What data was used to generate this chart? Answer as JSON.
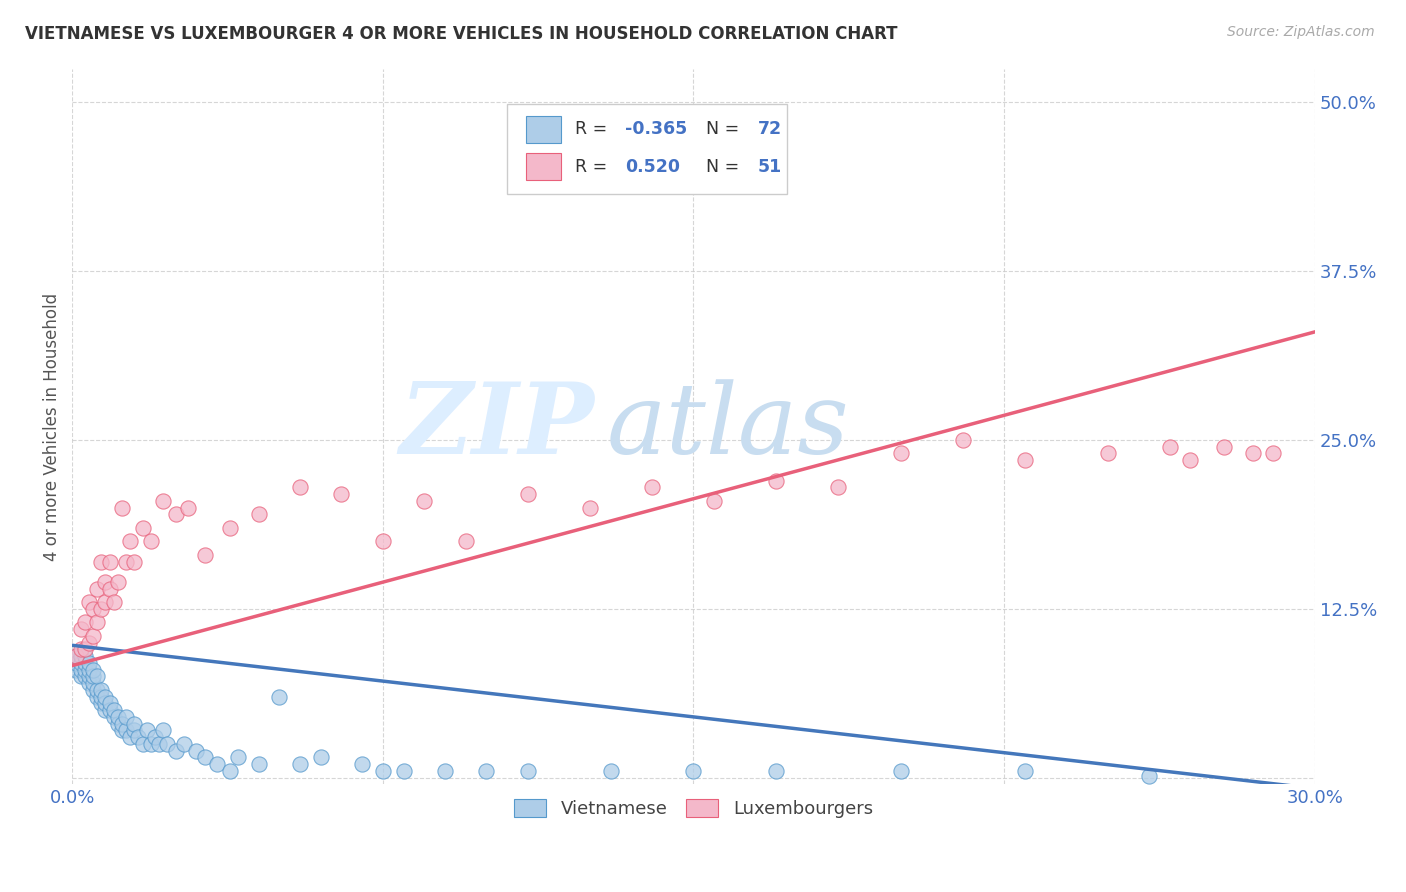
{
  "title": "VIETNAMESE VS LUXEMBOURGER 4 OR MORE VEHICLES IN HOUSEHOLD CORRELATION CHART",
  "source": "Source: ZipAtlas.com",
  "ylabel": "4 or more Vehicles in Household",
  "xlim": [
    0.0,
    0.3
  ],
  "ylim": [
    -0.005,
    0.525
  ],
  "yticks": [
    0.0,
    0.125,
    0.25,
    0.375,
    0.5
  ],
  "ytick_labels": [
    "",
    "12.5%",
    "25.0%",
    "37.5%",
    "50.0%"
  ],
  "xticks": [
    0.0,
    0.075,
    0.15,
    0.225,
    0.3
  ],
  "xtick_labels": [
    "0.0%",
    "",
    "",
    "",
    "30.0%"
  ],
  "color_vietnamese": "#aecde8",
  "color_luxembourger": "#f4b8ca",
  "color_edge_vietnamese": "#5599cc",
  "color_edge_luxembourger": "#e8607a",
  "color_line_vietnamese": "#4477bb",
  "color_line_luxembourger": "#e8607a",
  "color_title": "#333333",
  "color_axis_labels": "#4472c4",
  "color_r_value": "#4472c4",
  "background_color": "#ffffff",
  "watermark_zip": "ZIP",
  "watermark_atlas": "atlas",
  "watermark_color_zip": "#ddeeff",
  "watermark_color_atlas": "#c8ddf0",
  "viet_line_x": [
    0.0,
    0.3
  ],
  "viet_line_y": [
    0.098,
    -0.008
  ],
  "lux_line_x": [
    0.0,
    0.3
  ],
  "lux_line_y": [
    0.083,
    0.33
  ],
  "vietnamese_x": [
    0.001,
    0.001,
    0.001,
    0.002,
    0.002,
    0.002,
    0.002,
    0.003,
    0.003,
    0.003,
    0.003,
    0.004,
    0.004,
    0.004,
    0.004,
    0.005,
    0.005,
    0.005,
    0.005,
    0.006,
    0.006,
    0.006,
    0.007,
    0.007,
    0.007,
    0.008,
    0.008,
    0.008,
    0.009,
    0.009,
    0.01,
    0.01,
    0.011,
    0.011,
    0.012,
    0.012,
    0.013,
    0.013,
    0.014,
    0.015,
    0.015,
    0.016,
    0.017,
    0.018,
    0.019,
    0.02,
    0.021,
    0.022,
    0.023,
    0.025,
    0.027,
    0.03,
    0.032,
    0.035,
    0.038,
    0.04,
    0.045,
    0.05,
    0.055,
    0.06,
    0.07,
    0.075,
    0.08,
    0.09,
    0.1,
    0.11,
    0.13,
    0.15,
    0.17,
    0.2,
    0.23,
    0.26
  ],
  "vietnamese_y": [
    0.08,
    0.085,
    0.09,
    0.075,
    0.08,
    0.085,
    0.09,
    0.075,
    0.08,
    0.085,
    0.09,
    0.07,
    0.075,
    0.08,
    0.085,
    0.065,
    0.07,
    0.075,
    0.08,
    0.06,
    0.065,
    0.075,
    0.055,
    0.06,
    0.065,
    0.05,
    0.055,
    0.06,
    0.05,
    0.055,
    0.045,
    0.05,
    0.04,
    0.045,
    0.035,
    0.04,
    0.035,
    0.045,
    0.03,
    0.035,
    0.04,
    0.03,
    0.025,
    0.035,
    0.025,
    0.03,
    0.025,
    0.035,
    0.025,
    0.02,
    0.025,
    0.02,
    0.015,
    0.01,
    0.005,
    0.015,
    0.01,
    0.06,
    0.01,
    0.015,
    0.01,
    0.005,
    0.005,
    0.005,
    0.005,
    0.005,
    0.005,
    0.005,
    0.005,
    0.005,
    0.005,
    0.001
  ],
  "luxembourger_x": [
    0.001,
    0.002,
    0.002,
    0.003,
    0.003,
    0.004,
    0.004,
    0.005,
    0.005,
    0.006,
    0.006,
    0.007,
    0.007,
    0.008,
    0.008,
    0.009,
    0.009,
    0.01,
    0.011,
    0.012,
    0.013,
    0.014,
    0.015,
    0.017,
    0.019,
    0.022,
    0.025,
    0.028,
    0.032,
    0.038,
    0.045,
    0.055,
    0.065,
    0.075,
    0.085,
    0.095,
    0.11,
    0.125,
    0.14,
    0.155,
    0.17,
    0.185,
    0.2,
    0.215,
    0.23,
    0.25,
    0.265,
    0.27,
    0.278,
    0.285,
    0.29
  ],
  "luxembourger_y": [
    0.09,
    0.095,
    0.11,
    0.095,
    0.115,
    0.1,
    0.13,
    0.105,
    0.125,
    0.115,
    0.14,
    0.125,
    0.16,
    0.13,
    0.145,
    0.14,
    0.16,
    0.13,
    0.145,
    0.2,
    0.16,
    0.175,
    0.16,
    0.185,
    0.175,
    0.205,
    0.195,
    0.2,
    0.165,
    0.185,
    0.195,
    0.215,
    0.21,
    0.175,
    0.205,
    0.175,
    0.21,
    0.2,
    0.215,
    0.205,
    0.22,
    0.215,
    0.24,
    0.25,
    0.235,
    0.24,
    0.245,
    0.235,
    0.245,
    0.24,
    0.24
  ]
}
